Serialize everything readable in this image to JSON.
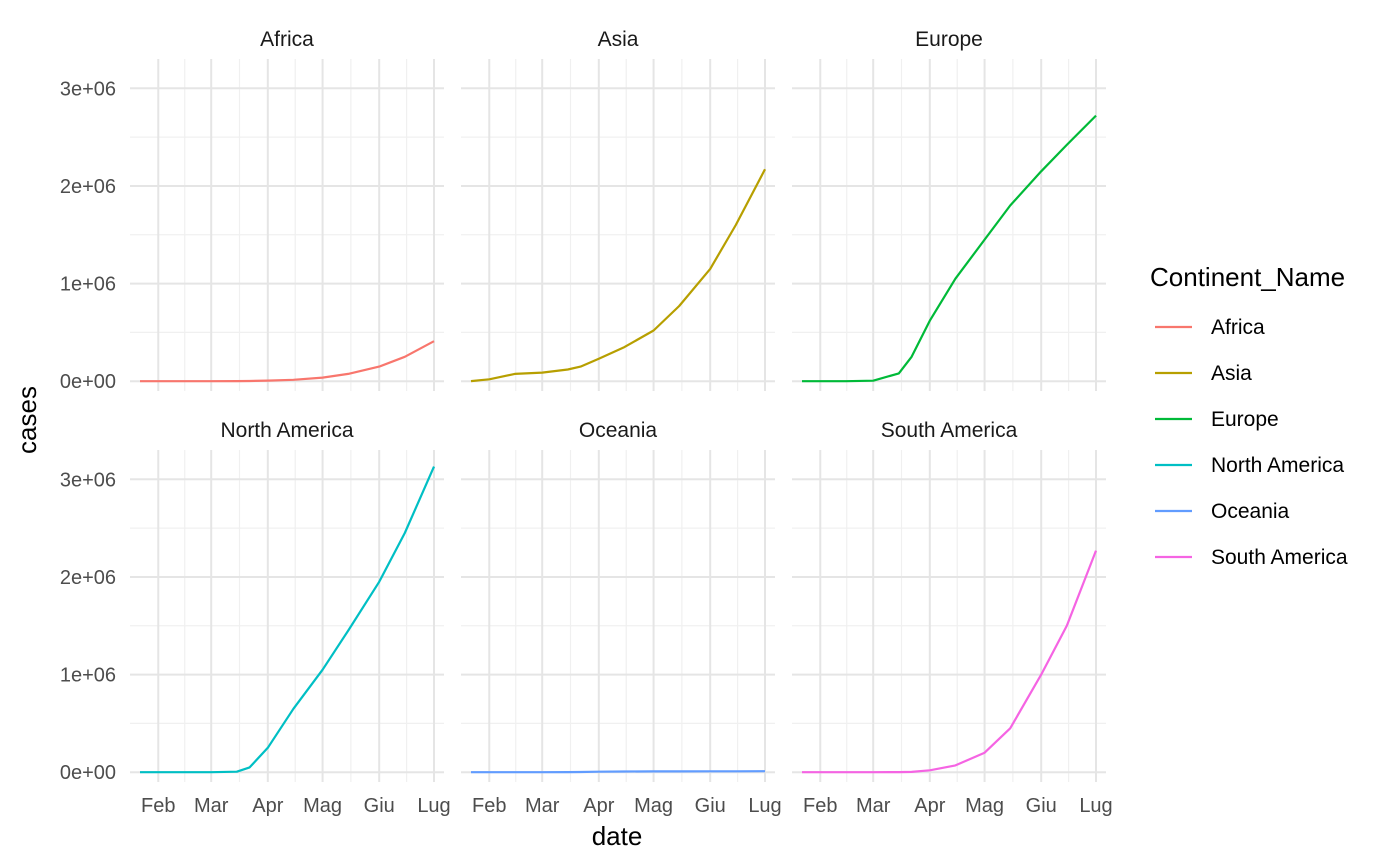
{
  "chart_data": {
    "type": "line",
    "layout": "facet_wrap",
    "xlabel": "date",
    "ylabel": "cases",
    "x_ticks": [
      "Feb",
      "Mar",
      "Apr",
      "Mag",
      "Giu",
      "Lug"
    ],
    "x_tick_values": [
      "2020-02-01",
      "2020-03-01",
      "2020-04-01",
      "2020-05-01",
      "2020-06-01",
      "2020-07-01"
    ],
    "x_range": [
      "2020-01-22",
      "2020-07-01"
    ],
    "y_ticks": [
      "0e+00",
      "1e+06",
      "2e+06",
      "3e+06"
    ],
    "y_tick_values": [
      0,
      1000000,
      2000000,
      3000000
    ],
    "ylim": [
      -100000,
      3300000
    ],
    "grid": true,
    "legend": {
      "title": "Continent_Name",
      "position": "right"
    },
    "dates": [
      "2020-01-22",
      "2020-02-01",
      "2020-02-15",
      "2020-03-01",
      "2020-03-15",
      "2020-03-22",
      "2020-04-01",
      "2020-04-15",
      "2020-05-01",
      "2020-05-15",
      "2020-06-01",
      "2020-06-15",
      "2020-07-01"
    ],
    "series": [
      {
        "name": "Africa",
        "color": "#F8766D",
        "values": [
          0,
          0,
          0,
          0,
          1000,
          2000,
          6000,
          15000,
          37000,
          75000,
          150000,
          250000,
          410000
        ]
      },
      {
        "name": "Asia",
        "color": "#B79F00",
        "values": [
          1000,
          20000,
          75000,
          88000,
          120000,
          150000,
          230000,
          350000,
          520000,
          770000,
          1150000,
          1600000,
          2170000
        ]
      },
      {
        "name": "Europe",
        "color": "#00BA38",
        "values": [
          0,
          0,
          0,
          5000,
          80000,
          250000,
          620000,
          1050000,
          1450000,
          1800000,
          2150000,
          2420000,
          2720000
        ]
      },
      {
        "name": "North America",
        "color": "#00BFC4",
        "values": [
          0,
          0,
          0,
          0,
          5000,
          50000,
          250000,
          650000,
          1050000,
          1450000,
          1950000,
          2450000,
          3130000
        ]
      },
      {
        "name": "Oceania",
        "color": "#619CFF",
        "values": [
          0,
          0,
          0,
          0,
          1000,
          2000,
          5000,
          8000,
          9000,
          9000,
          9500,
          10000,
          11000
        ]
      },
      {
        "name": "South America",
        "color": "#F564E3",
        "values": [
          0,
          0,
          0,
          0,
          1000,
          3000,
          20000,
          70000,
          200000,
          450000,
          1000000,
          1500000,
          2270000
        ]
      }
    ]
  }
}
